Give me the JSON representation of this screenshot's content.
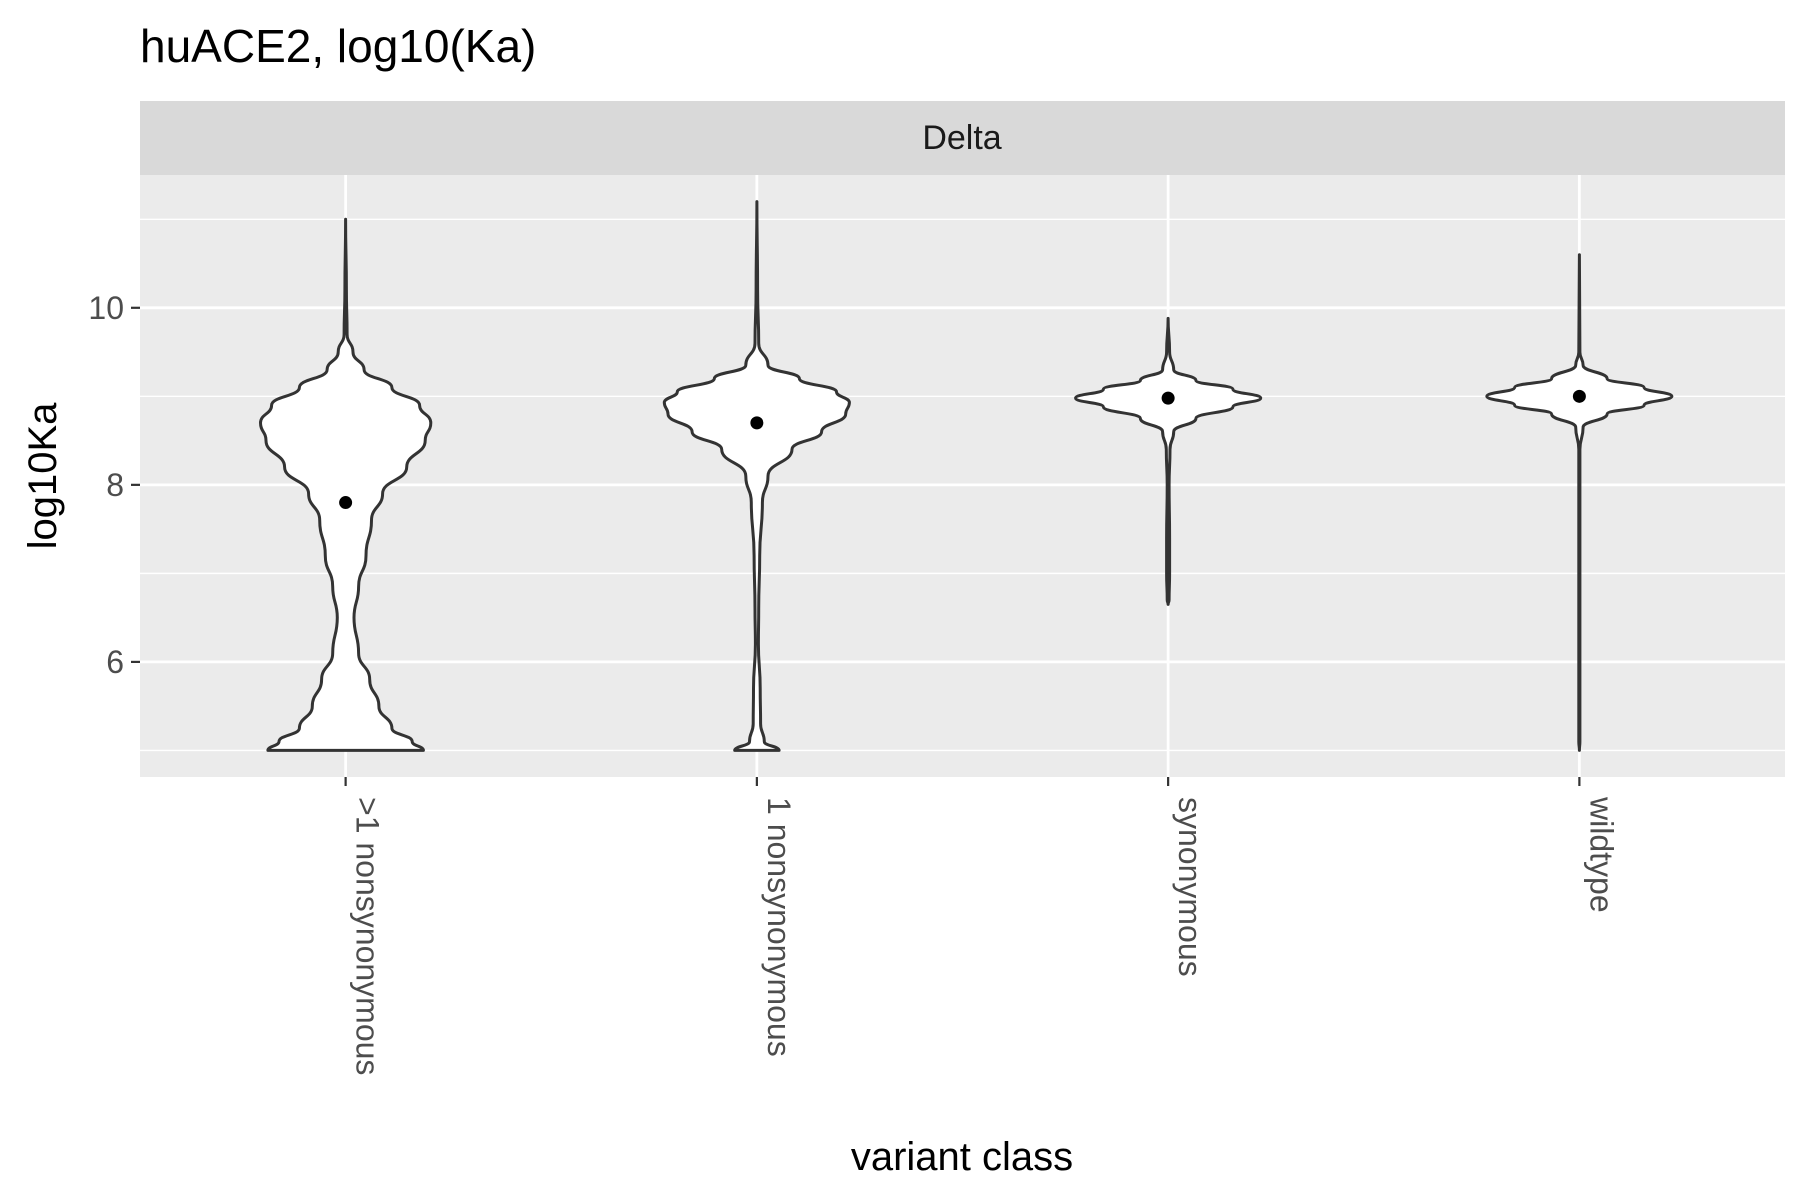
{
  "chart_data": {
    "type": "violin",
    "title": "huACE2, log10(Ka)",
    "facet": "Delta",
    "xlabel": "variant class",
    "ylabel": "log10Ka",
    "categories": [
      ">1 nonsynonymous",
      "1 nonsynonymous",
      "synonymous",
      "wildtype"
    ],
    "ylim": [
      4.7,
      11.5
    ],
    "y_ticks": [
      6,
      8,
      10
    ],
    "grid": true,
    "series": [
      {
        "category": ">1 nonsynonymous",
        "mean": 7.8,
        "min": 5.0,
        "max": 11.0,
        "density_profile": [
          {
            "y": 5.0,
            "w": 0.42
          },
          {
            "y": 5.1,
            "w": 0.36
          },
          {
            "y": 5.25,
            "w": 0.25
          },
          {
            "y": 5.5,
            "w": 0.18
          },
          {
            "y": 5.8,
            "w": 0.13
          },
          {
            "y": 6.1,
            "w": 0.07
          },
          {
            "y": 6.5,
            "w": 0.045
          },
          {
            "y": 6.85,
            "w": 0.07
          },
          {
            "y": 7.2,
            "w": 0.11
          },
          {
            "y": 7.6,
            "w": 0.14
          },
          {
            "y": 7.9,
            "w": 0.2
          },
          {
            "y": 8.2,
            "w": 0.33
          },
          {
            "y": 8.5,
            "w": 0.43
          },
          {
            "y": 8.7,
            "w": 0.46
          },
          {
            "y": 8.9,
            "w": 0.4
          },
          {
            "y": 9.1,
            "w": 0.25
          },
          {
            "y": 9.3,
            "w": 0.1
          },
          {
            "y": 9.5,
            "w": 0.04
          },
          {
            "y": 9.7,
            "w": 0.008
          },
          {
            "y": 10.2,
            "w": 0.004
          },
          {
            "y": 11.0,
            "w": 0.0
          }
        ]
      },
      {
        "category": "1 nonsynonymous",
        "mean": 8.7,
        "min": 5.0,
        "max": 11.2,
        "density_profile": [
          {
            "y": 5.0,
            "w": 0.12
          },
          {
            "y": 5.1,
            "w": 0.04
          },
          {
            "y": 5.3,
            "w": 0.02
          },
          {
            "y": 5.7,
            "w": 0.018
          },
          {
            "y": 6.2,
            "w": 0.008
          },
          {
            "y": 6.6,
            "w": 0.01
          },
          {
            "y": 7.2,
            "w": 0.015
          },
          {
            "y": 7.8,
            "w": 0.03
          },
          {
            "y": 8.1,
            "w": 0.06
          },
          {
            "y": 8.4,
            "w": 0.19
          },
          {
            "y": 8.6,
            "w": 0.35
          },
          {
            "y": 8.8,
            "w": 0.48
          },
          {
            "y": 8.93,
            "w": 0.5
          },
          {
            "y": 9.05,
            "w": 0.43
          },
          {
            "y": 9.2,
            "w": 0.23
          },
          {
            "y": 9.35,
            "w": 0.06
          },
          {
            "y": 9.6,
            "w": 0.01
          },
          {
            "y": 10.2,
            "w": 0.004
          },
          {
            "y": 11.2,
            "w": 0.0
          }
        ]
      },
      {
        "category": "synonymous",
        "mean": 8.98,
        "min": 6.65,
        "max": 9.88,
        "density_profile": [
          {
            "y": 6.65,
            "w": 0.0
          },
          {
            "y": 6.7,
            "w": 0.005
          },
          {
            "y": 7.0,
            "w": 0.008
          },
          {
            "y": 7.4,
            "w": 0.008
          },
          {
            "y": 8.0,
            "w": 0.005
          },
          {
            "y": 8.4,
            "w": 0.01
          },
          {
            "y": 8.6,
            "w": 0.03
          },
          {
            "y": 8.75,
            "w": 0.15
          },
          {
            "y": 8.88,
            "w": 0.35
          },
          {
            "y": 8.98,
            "w": 0.5
          },
          {
            "y": 9.08,
            "w": 0.35
          },
          {
            "y": 9.18,
            "w": 0.15
          },
          {
            "y": 9.3,
            "w": 0.03
          },
          {
            "y": 9.5,
            "w": 0.008
          },
          {
            "y": 9.88,
            "w": 0.0
          }
        ]
      },
      {
        "category": "wildtype",
        "mean": 9.0,
        "min": 5.0,
        "max": 10.6,
        "density_profile": [
          {
            "y": 5.0,
            "w": 0.0
          },
          {
            "y": 5.1,
            "w": 0.003
          },
          {
            "y": 8.4,
            "w": 0.003
          },
          {
            "y": 8.65,
            "w": 0.02
          },
          {
            "y": 8.8,
            "w": 0.15
          },
          {
            "y": 8.9,
            "w": 0.35
          },
          {
            "y": 9.0,
            "w": 0.5
          },
          {
            "y": 9.1,
            "w": 0.35
          },
          {
            "y": 9.2,
            "w": 0.15
          },
          {
            "y": 9.35,
            "w": 0.02
          },
          {
            "y": 9.5,
            "w": 0.003
          },
          {
            "y": 10.6,
            "w": 0.0
          }
        ]
      }
    ]
  }
}
